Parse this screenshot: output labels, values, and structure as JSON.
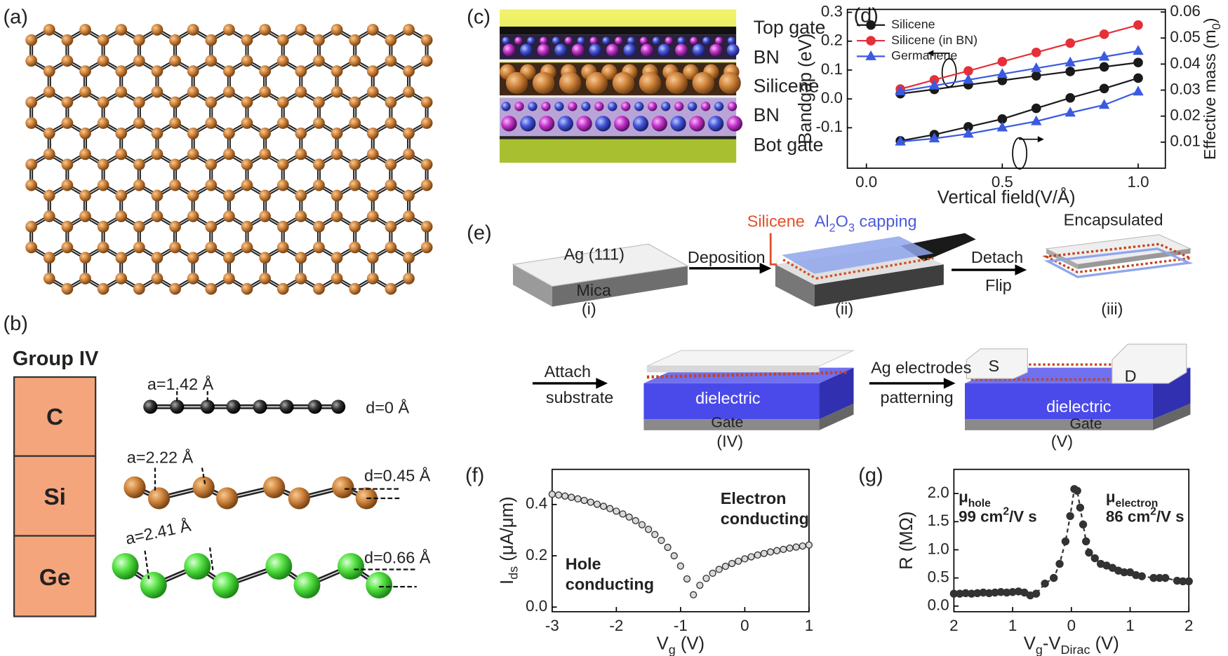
{
  "panel_labels": [
    "(a)",
    "(b)",
    "(c)",
    "(d)",
    "(e)",
    "(f)",
    "(g)"
  ],
  "group_table": {
    "title": "Group IV",
    "elements": [
      "C",
      "Si",
      "Ge"
    ],
    "lattice_constants": [
      "a=1.42 Å",
      "a=2.22 Å",
      "a=2.41 Å"
    ],
    "buckling": [
      "d=0 Å",
      "d=0.45 Å",
      "d=0.66 Å"
    ]
  },
  "device_layers": [
    "Top gate",
    "BN",
    "Silicene",
    "BN",
    "Bot gate"
  ],
  "fabrication": {
    "substrate_top": "Ag (111)",
    "substrate_base": "Mica",
    "step_i": "(i)",
    "deposition": "Deposition",
    "silicene": "Silicene",
    "capping": [
      "Al",
      {
        "sub": "2"
      },
      "O",
      {
        "sub": "3"
      },
      " capping"
    ],
    "step_ii": "(ii)",
    "detach": "Detach",
    "flip": "Flip",
    "encapsulated": "Encapsulated",
    "step_iii": "(iii)",
    "attach": "Attach",
    "substrate": "substrate",
    "dielectric_iv": "dielectric",
    "gate_iv": "Gate",
    "step_iv": "(IV)",
    "electrodes": "Ag electrodes",
    "patterning": "patterning",
    "source": "S",
    "drain": "D",
    "dielectric_v": "dielectric",
    "gate_v": "Gate",
    "step_v": "(V)"
  },
  "chart_data": [
    {
      "type": "line",
      "xlabel": "Vertical field(V/Å)",
      "ylabel": "Bandgap (eV)",
      "y2label": [
        "Effective mass (m",
        {
          "sub": "0"
        },
        ")"
      ],
      "x": [
        0.125,
        0.25,
        0.375,
        0.5,
        0.625,
        0.75,
        0.875,
        1
      ],
      "xlim": [
        -0.07,
        1.1
      ],
      "xticks": [
        {
          "value": 0,
          "label": "0.0"
        },
        0.5,
        {
          "value": 1,
          "label": "1.0"
        }
      ],
      "ylim": [
        -0.24,
        0.31
      ],
      "yticks": [
        -0.1,
        {
          "value": 0,
          "label": "0.0"
        },
        0.1,
        0.2,
        0.3
      ],
      "y2lim": [
        0,
        0.061
      ],
      "y2ticks": [
        0.01,
        0.02,
        0.03,
        0.04,
        0.05,
        0.06
      ],
      "legend": "upper left",
      "series": [
        {
          "name": "Silicene",
          "color": "#1a1a1a",
          "marker": "circle",
          "values": [
            0.018,
            0.033,
            0.049,
            0.064,
            0.08,
            0.095,
            0.111,
            0.126
          ]
        },
        {
          "name": "Silicene (in BN)",
          "color": "#e5303a",
          "marker": "circle",
          "values": [
            0.034,
            0.066,
            0.097,
            0.129,
            0.161,
            0.193,
            0.224,
            0.256
          ]
        },
        {
          "name": "Germanene",
          "color": "#3a5be0",
          "marker": "triangle",
          "values": [
            0.026,
            0.046,
            0.066,
            0.086,
            0.106,
            0.126,
            0.146,
            0.166
          ]
        },
        {
          "name": "Silicene",
          "color": "#1a1a1a",
          "marker": "circle",
          "axis": "y2",
          "values": [
            0.0105,
            0.0129,
            0.0159,
            0.0189,
            0.023,
            0.027,
            0.0306,
            0.0346
          ]
        },
        {
          "name": "Germanene",
          "color": "#3a5be0",
          "marker": "triangle",
          "axis": "y2",
          "values": [
            0.0102,
            0.0114,
            0.0132,
            0.0156,
            0.018,
            0.0213,
            0.0243,
            0.0294
          ]
        }
      ]
    },
    {
      "type": "scatter",
      "xlabel": [
        "V",
        {
          "sub": "g"
        },
        " (V)"
      ],
      "ylabel": [
        "I",
        {
          "sub": "ds"
        },
        " (μA/μm)"
      ],
      "x": [
        -3,
        -2.9,
        -2.8,
        -2.7,
        -2.6,
        -2.5,
        -2.4,
        -2.3,
        -2.2,
        -2.1,
        -2,
        -1.9,
        -1.8,
        -1.7,
        -1.6,
        -1.5,
        -1.4,
        -1.3,
        -1.2,
        -1.1,
        -1,
        -0.9,
        -0.8,
        -0.7,
        -0.6,
        -0.5,
        -0.4,
        -0.3,
        -0.2,
        -0.1,
        0,
        0.1,
        0.2,
        0.3,
        0.4,
        0.5,
        0.6,
        0.7,
        0.8,
        0.9,
        1
      ],
      "values": [
        0.44,
        0.437,
        0.433,
        0.428,
        0.422,
        0.416,
        0.409,
        0.401,
        0.393,
        0.384,
        0.374,
        0.363,
        0.351,
        0.337,
        0.321,
        0.303,
        0.283,
        0.26,
        0.233,
        0.2,
        0.16,
        0.11,
        0.048,
        0.085,
        0.112,
        0.132,
        0.147,
        0.159,
        0.17,
        0.179,
        0.188,
        0.196,
        0.203,
        0.209,
        0.215,
        0.22,
        0.225,
        0.23,
        0.234,
        0.238,
        0.242
      ],
      "color": "#333333",
      "marker": "circle",
      "marker_fill": "#d9d9d9",
      "xlim": [
        -3,
        1
      ],
      "xticks": [
        -3,
        -2,
        -1,
        0,
        1
      ],
      "ylim": [
        -0.018,
        0.537
      ],
      "yticks": [
        {
          "value": 0,
          "label": "0.0"
        },
        0.2,
        0.4
      ],
      "annotations": [
        [
          [
            "Hole"
          ],
          [
            "conducting"
          ]
        ],
        [
          [
            "Electron"
          ],
          [
            "conducting"
          ]
        ]
      ]
    },
    {
      "type": "line",
      "line_style": "dashed",
      "xlabel": [
        "V",
        {
          "sub": "g"
        },
        "-V",
        {
          "sub": "Dirac"
        },
        " (V)"
      ],
      "ylabel": "R (MΩ)",
      "x": [
        -2,
        -1.9,
        -1.8,
        -1.7,
        -1.6,
        -1.5,
        -1.4,
        -1.3,
        -1.2,
        -1.1,
        -1,
        -0.9,
        -0.8,
        -0.7,
        -0.6,
        -0.45,
        -0.3,
        -0.2,
        -0.1,
        -0.02,
        0.05,
        0.1,
        0.15,
        0.2,
        0.25,
        0.3,
        0.4,
        0.5,
        0.6,
        0.7,
        0.8,
        0.9,
        1,
        1.1,
        1.2,
        1.4,
        1.5,
        1.6,
        1.8,
        1.9,
        2
      ],
      "values": [
        0.22,
        0.22,
        0.23,
        0.22,
        0.23,
        0.24,
        0.23,
        0.24,
        0.25,
        0.24,
        0.25,
        0.26,
        0.24,
        0.19,
        0.22,
        0.4,
        0.5,
        0.75,
        1.15,
        1.6,
        2.08,
        2.05,
        1.75,
        1.45,
        1.15,
        0.95,
        0.85,
        0.75,
        0.72,
        0.68,
        0.63,
        0.6,
        0.6,
        0.55,
        0.53,
        0.5,
        0.5,
        0.5,
        0.45,
        0.44,
        0.44
      ],
      "color": "#333333",
      "marker": "circle",
      "marker_fill": "#333333",
      "xlim": [
        -2,
        2
      ],
      "xticks": [
        {
          "value": -2,
          "label": "2"
        },
        {
          "value": -1,
          "label": "1"
        },
        0,
        1,
        2
      ],
      "ylim": [
        -0.1,
        2.43
      ],
      "yticks": [
        {
          "value": 0,
          "label": "0.0"
        },
        0.5,
        {
          "value": 1,
          "label": "1.0"
        },
        1.5,
        {
          "value": 2,
          "label": "2.0"
        }
      ],
      "annotations": [
        [
          [
            "μ",
            {
              "sub": "hole"
            }
          ],
          [
            "99 cm",
            {
              "sup": "2"
            },
            "/V s"
          ]
        ],
        [
          [
            "μ",
            {
              "sub": "electron"
            }
          ],
          [
            "86 cm",
            {
              "sup": "2"
            },
            "/V s"
          ]
        ]
      ]
    }
  ]
}
